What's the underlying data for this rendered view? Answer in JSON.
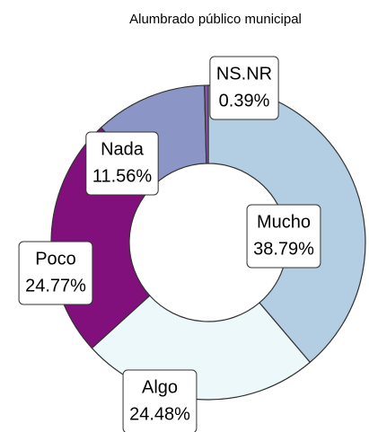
{
  "chart_data": {
    "type": "donut",
    "title": "Alumbrado público municipal",
    "categories": [
      "Mucho",
      "Algo",
      "Poco",
      "Nada",
      "NS.NR"
    ],
    "values": [
      38.79,
      24.48,
      24.77,
      11.56,
      0.39
    ],
    "value_labels": [
      "38.79%",
      "24.48%",
      "24.77%",
      "11.56%",
      "0.39%"
    ],
    "colors": [
      "#b3cde3",
      "#edf8fb",
      "#810f7c",
      "#8c96c6",
      "#8856a7"
    ]
  }
}
